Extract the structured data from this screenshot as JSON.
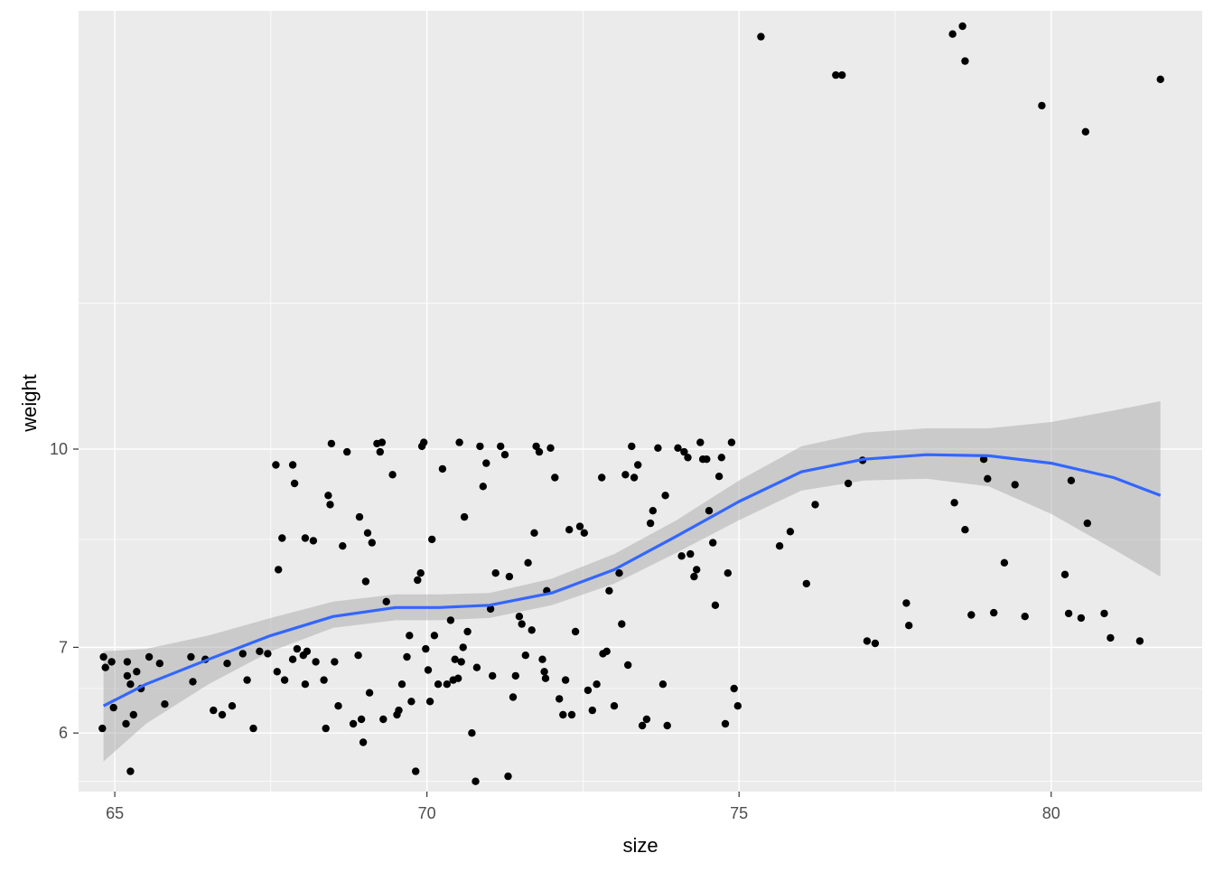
{
  "chart_data": {
    "type": "scatter",
    "title": "",
    "xlabel": "size",
    "ylabel": "weight",
    "x_axis": {
      "transform": "linear",
      "range": [
        64.42,
        82.42
      ],
      "ticks": [
        65,
        70,
        75,
        80
      ],
      "tick_labels": [
        "65",
        "70",
        "75",
        "80"
      ]
    },
    "y_axis": {
      "transform": "log",
      "range": [
        5.4,
        22
      ],
      "ticks": [
        6,
        7,
        10
      ],
      "tick_labels": [
        "6",
        "7",
        "10"
      ],
      "minor_gridlines": [
        5.5,
        6.5,
        8.5,
        13
      ]
    },
    "grid": true,
    "legend": "none",
    "colors": {
      "panel_background": "#ebebeb",
      "gridline": "#ffffff",
      "point": "#000000",
      "smooth_line": "#3366ff",
      "confidence_band": "#b8b8b8",
      "tick_text": "#4d4d4d"
    },
    "points": [
      [
        64.82,
        6.88
      ],
      [
        64.85,
        6.75
      ],
      [
        64.95,
        6.82
      ],
      [
        64.98,
        6.28
      ],
      [
        64.8,
        6.05
      ],
      [
        65.2,
        6.82
      ],
      [
        65.2,
        6.65
      ],
      [
        65.25,
        6.55
      ],
      [
        65.35,
        6.7
      ],
      [
        65.42,
        6.5
      ],
      [
        65.18,
        6.1
      ],
      [
        65.3,
        6.2
      ],
      [
        65.25,
        5.6
      ],
      [
        65.55,
        6.88
      ],
      [
        65.72,
        6.8
      ],
      [
        65.8,
        6.32
      ],
      [
        66.22,
        6.88
      ],
      [
        66.25,
        6.58
      ],
      [
        66.45,
        6.85
      ],
      [
        66.58,
        6.25
      ],
      [
        66.72,
        6.2
      ],
      [
        66.88,
        6.3
      ],
      [
        66.8,
        6.8
      ],
      [
        67.12,
        6.6
      ],
      [
        67.05,
        6.92
      ],
      [
        67.22,
        6.05
      ],
      [
        67.32,
        6.95
      ],
      [
        67.45,
        6.92
      ],
      [
        67.6,
        6.7
      ],
      [
        67.72,
        6.6
      ],
      [
        67.85,
        6.85
      ],
      [
        67.92,
        6.98
      ],
      [
        68.02,
        6.9
      ],
      [
        68.05,
        6.55
      ],
      [
        68.08,
        6.95
      ],
      [
        67.58,
        9.72
      ],
      [
        67.62,
        8.05
      ],
      [
        67.68,
        8.52
      ],
      [
        67.85,
        9.72
      ],
      [
        67.88,
        9.4
      ],
      [
        68.05,
        8.52
      ],
      [
        68.18,
        8.48
      ],
      [
        68.22,
        6.82
      ],
      [
        68.35,
        6.6
      ],
      [
        68.38,
        6.05
      ],
      [
        68.47,
        10.1
      ],
      [
        68.42,
        9.2
      ],
      [
        68.45,
        9.05
      ],
      [
        68.52,
        6.82
      ],
      [
        68.58,
        6.3
      ],
      [
        68.65,
        8.4
      ],
      [
        68.72,
        9.95
      ],
      [
        68.82,
        6.1
      ],
      [
        68.9,
        6.9
      ],
      [
        68.92,
        8.85
      ],
      [
        68.95,
        6.15
      ],
      [
        68.98,
        5.9
      ],
      [
        69.02,
        7.88
      ],
      [
        69.05,
        8.6
      ],
      [
        69.08,
        6.45
      ],
      [
        69.12,
        8.45
      ],
      [
        69.2,
        10.1
      ],
      [
        69.25,
        9.95
      ],
      [
        69.28,
        10.12
      ],
      [
        69.3,
        6.15
      ],
      [
        69.35,
        7.6
      ],
      [
        69.45,
        9.55
      ],
      [
        69.52,
        6.2
      ],
      [
        69.55,
        6.25
      ],
      [
        69.6,
        6.55
      ],
      [
        69.68,
        6.88
      ],
      [
        69.72,
        7.15
      ],
      [
        69.75,
        6.35
      ],
      [
        69.82,
        5.6
      ],
      [
        69.85,
        7.9
      ],
      [
        69.9,
        8.0
      ],
      [
        69.92,
        10.05
      ],
      [
        69.95,
        10.12
      ],
      [
        69.98,
        6.98
      ],
      [
        70.02,
        6.72
      ],
      [
        70.05,
        6.35
      ],
      [
        70.08,
        8.5
      ],
      [
        70.12,
        7.15
      ],
      [
        70.18,
        6.55
      ],
      [
        70.25,
        9.65
      ],
      [
        70.32,
        6.55
      ],
      [
        70.38,
        7.35
      ],
      [
        70.42,
        6.6
      ],
      [
        70.45,
        6.85
      ],
      [
        70.5,
        6.62
      ],
      [
        70.52,
        10.12
      ],
      [
        70.55,
        6.82
      ],
      [
        70.58,
        7.0
      ],
      [
        70.6,
        8.85
      ],
      [
        70.65,
        7.2
      ],
      [
        70.72,
        6.0
      ],
      [
        70.78,
        5.5
      ],
      [
        70.8,
        6.75
      ],
      [
        70.85,
        10.05
      ],
      [
        70.9,
        9.35
      ],
      [
        70.95,
        9.75
      ],
      [
        71.02,
        7.5
      ],
      [
        71.05,
        6.65
      ],
      [
        71.1,
        8.0
      ],
      [
        71.18,
        10.05
      ],
      [
        71.25,
        9.9
      ],
      [
        71.3,
        5.55
      ],
      [
        71.32,
        7.95
      ],
      [
        71.38,
        6.4
      ],
      [
        71.42,
        6.65
      ],
      [
        71.48,
        7.4
      ],
      [
        71.52,
        7.3
      ],
      [
        71.58,
        6.9
      ],
      [
        71.62,
        8.15
      ],
      [
        71.68,
        7.22
      ],
      [
        71.72,
        8.6
      ],
      [
        71.75,
        10.05
      ],
      [
        71.8,
        9.95
      ],
      [
        71.85,
        6.85
      ],
      [
        71.88,
        6.7
      ],
      [
        71.9,
        6.62
      ],
      [
        71.92,
        7.75
      ],
      [
        71.98,
        10.02
      ],
      [
        72.05,
        9.5
      ],
      [
        72.12,
        6.38
      ],
      [
        72.18,
        6.2
      ],
      [
        72.22,
        6.6
      ],
      [
        72.28,
        8.65
      ],
      [
        72.32,
        6.2
      ],
      [
        72.38,
        7.2
      ],
      [
        72.45,
        8.7
      ],
      [
        72.52,
        8.6
      ],
      [
        72.58,
        6.48
      ],
      [
        72.65,
        6.25
      ],
      [
        72.72,
        6.55
      ],
      [
        72.8,
        9.5
      ],
      [
        72.82,
        6.92
      ],
      [
        72.88,
        6.95
      ],
      [
        72.92,
        7.75
      ],
      [
        73.0,
        6.3
      ],
      [
        73.08,
        8.0
      ],
      [
        73.12,
        7.3
      ],
      [
        73.18,
        9.55
      ],
      [
        73.22,
        6.78
      ],
      [
        73.28,
        10.05
      ],
      [
        73.32,
        9.5
      ],
      [
        73.38,
        9.72
      ],
      [
        73.45,
        6.08
      ],
      [
        73.52,
        6.15
      ],
      [
        73.58,
        8.75
      ],
      [
        73.62,
        8.95
      ],
      [
        73.7,
        10.02
      ],
      [
        73.78,
        6.55
      ],
      [
        73.82,
        9.2
      ],
      [
        73.85,
        6.08
      ],
      [
        74.02,
        10.02
      ],
      [
        74.08,
        8.25
      ],
      [
        74.12,
        9.95
      ],
      [
        74.18,
        9.85
      ],
      [
        74.22,
        8.28
      ],
      [
        74.28,
        7.95
      ],
      [
        74.32,
        8.05
      ],
      [
        74.38,
        10.12
      ],
      [
        74.42,
        9.82
      ],
      [
        74.48,
        9.82
      ],
      [
        74.52,
        8.95
      ],
      [
        74.58,
        8.45
      ],
      [
        74.62,
        7.55
      ],
      [
        74.68,
        9.52
      ],
      [
        74.72,
        9.85
      ],
      [
        74.78,
        6.1
      ],
      [
        74.82,
        8.0
      ],
      [
        74.88,
        10.12
      ],
      [
        74.92,
        6.5
      ],
      [
        74.98,
        6.3
      ],
      [
        75.35,
        21.0
      ],
      [
        76.55,
        19.6
      ],
      [
        76.65,
        19.6
      ],
      [
        78.42,
        21.1
      ],
      [
        78.58,
        21.4
      ],
      [
        78.62,
        20.1
      ],
      [
        79.85,
        18.55
      ],
      [
        80.55,
        17.7
      ],
      [
        81.75,
        19.45
      ],
      [
        75.65,
        8.4
      ],
      [
        75.82,
        8.62
      ],
      [
        76.08,
        7.85
      ],
      [
        76.22,
        9.05
      ],
      [
        76.75,
        9.4
      ],
      [
        76.98,
        9.8
      ],
      [
        77.05,
        7.08
      ],
      [
        77.18,
        7.05
      ],
      [
        77.68,
        7.58
      ],
      [
        77.72,
        7.28
      ],
      [
        78.45,
        9.08
      ],
      [
        78.62,
        8.65
      ],
      [
        78.72,
        7.42
      ],
      [
        78.92,
        9.82
      ],
      [
        78.98,
        9.48
      ],
      [
        79.08,
        7.45
      ],
      [
        79.25,
        8.15
      ],
      [
        79.42,
        9.38
      ],
      [
        79.58,
        7.4
      ],
      [
        80.22,
        7.98
      ],
      [
        80.28,
        7.44
      ],
      [
        80.32,
        9.45
      ],
      [
        80.48,
        7.38
      ],
      [
        80.58,
        8.75
      ],
      [
        80.85,
        7.44
      ],
      [
        80.95,
        7.12
      ],
      [
        81.42,
        7.08
      ]
    ],
    "smooth_fit": [
      [
        64.82,
        6.3
      ],
      [
        65.5,
        6.55
      ],
      [
        66.5,
        6.85
      ],
      [
        67.5,
        7.15
      ],
      [
        68.5,
        7.4
      ],
      [
        69.5,
        7.52
      ],
      [
        70.2,
        7.52
      ],
      [
        71,
        7.55
      ],
      [
        72,
        7.72
      ],
      [
        73,
        8.05
      ],
      [
        74,
        8.55
      ],
      [
        75,
        9.1
      ],
      [
        76,
        9.6
      ],
      [
        77,
        9.82
      ],
      [
        78,
        9.9
      ],
      [
        79,
        9.88
      ],
      [
        80,
        9.75
      ],
      [
        81,
        9.5
      ],
      [
        81.75,
        9.2
      ]
    ],
    "confidence_band": {
      "lower": [
        5.7,
        6.15
      ],
      "upper": [
        6.9,
        7.0
      ],
      "band": [
        [
          64.82,
          5.7,
          6.95
        ],
        [
          65.5,
          6.1,
          6.98
        ],
        [
          66.5,
          6.55,
          7.15
        ],
        [
          67.5,
          6.95,
          7.38
        ],
        [
          68.5,
          7.25,
          7.6
        ],
        [
          69.5,
          7.35,
          7.7
        ],
        [
          70.2,
          7.35,
          7.7
        ],
        [
          71,
          7.38,
          7.72
        ],
        [
          72,
          7.55,
          7.92
        ],
        [
          73,
          7.85,
          8.28
        ],
        [
          74,
          8.3,
          8.8
        ],
        [
          75,
          8.8,
          9.45
        ],
        [
          76,
          9.28,
          10.05
        ],
        [
          77,
          9.45,
          10.3
        ],
        [
          78,
          9.48,
          10.38
        ],
        [
          79,
          9.35,
          10.38
        ],
        [
          80,
          8.9,
          10.5
        ],
        [
          81,
          8.35,
          10.72
        ],
        [
          81.75,
          7.95,
          10.9
        ]
      ]
    }
  }
}
